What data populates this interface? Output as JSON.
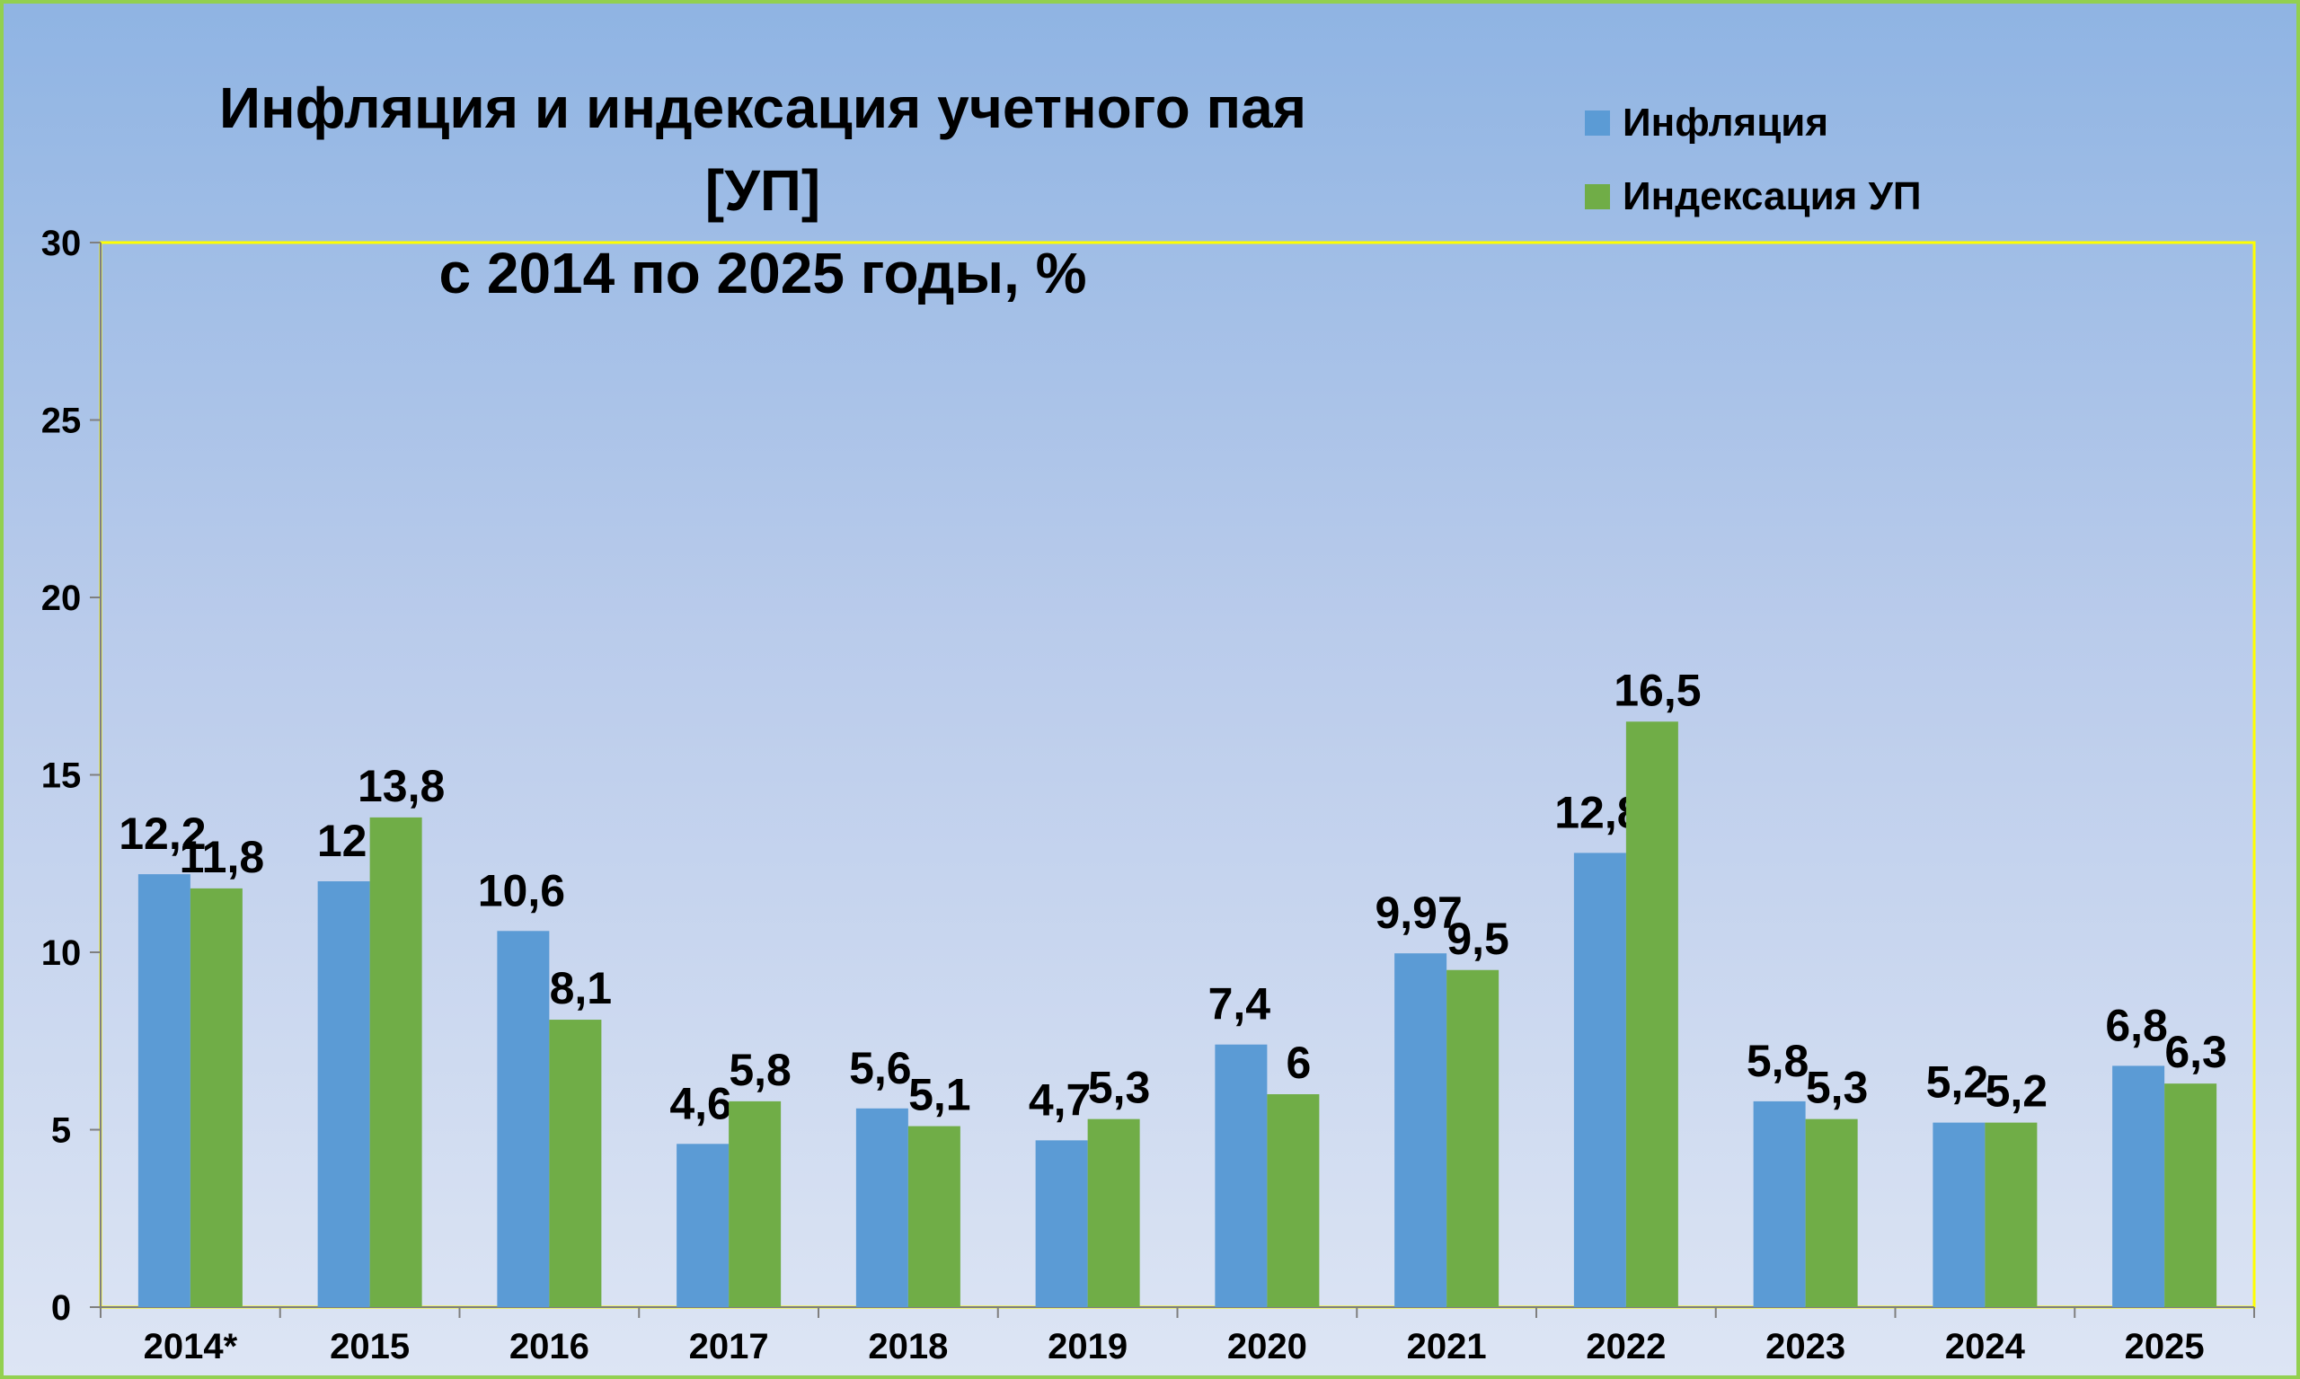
{
  "chart_data": {
    "type": "bar",
    "title": "Инфляция и индексация учетного пая [УП]",
    "subtitle": "с 2014 по 2025 годы, %",
    "categories": [
      "2014*",
      "2015",
      "2016",
      "2017",
      "2018",
      "2019",
      "2020",
      "2021",
      "2022",
      "2023",
      "2024",
      "2025"
    ],
    "series": [
      {
        "name": "Инфляция",
        "color": "#5b9bd5",
        "values": [
          12.2,
          12,
          10.6,
          4.6,
          5.6,
          4.7,
          7.4,
          9.97,
          12.8,
          5.8,
          5.2,
          6.8
        ],
        "labels": [
          "12,2",
          "12",
          "10,6",
          "4,6",
          "5,6",
          "4,7",
          "7,4",
          "9,97",
          "12,8",
          "5,8",
          "5,2",
          "6,8"
        ]
      },
      {
        "name": "Индексация УП",
        "color": "#70ad47",
        "values": [
          11.8,
          13.8,
          8.1,
          5.8,
          5.1,
          5.3,
          6,
          9.5,
          16.5,
          5.3,
          5.2,
          6.3
        ],
        "labels": [
          "11,8",
          "13,8",
          "8,1",
          "5,8",
          "5,1",
          "5,3",
          "6",
          "9,5",
          "16,5",
          "5,3",
          "5,2",
          "6,3"
        ]
      }
    ],
    "ylim": [
      0,
      30
    ],
    "yticks": [
      0,
      5,
      10,
      15,
      20,
      25,
      30
    ],
    "xlabel": "",
    "ylabel": "",
    "grid": false,
    "legend_position": "top-right",
    "plot_border_color": "#ffff00",
    "frame_border_color": "#92d050"
  }
}
